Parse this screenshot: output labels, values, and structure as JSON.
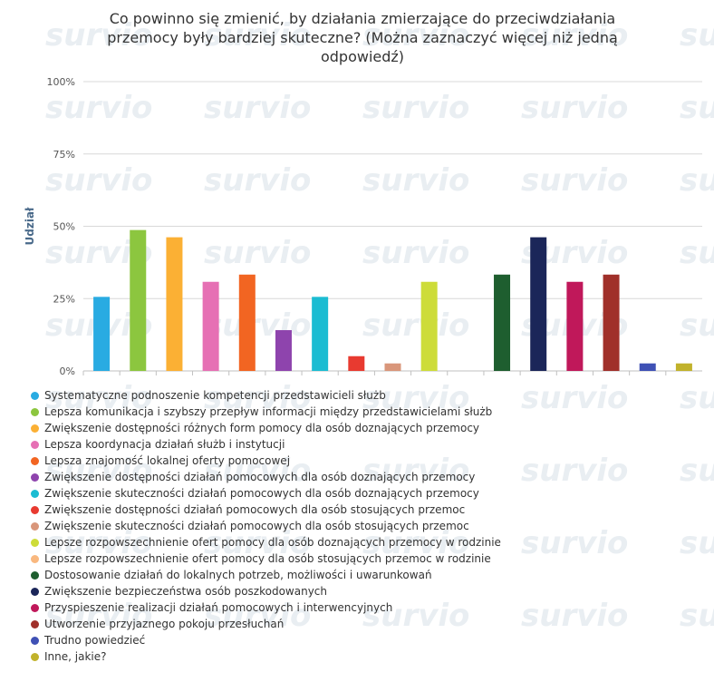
{
  "chart_data": {
    "type": "bar",
    "title": "Co powinno się zmienić, by działania zmierzające do przeciwdziałania przemocy były bardziej skuteczne? (Można zaznaczyć więcej niż jedną odpowiedź)",
    "ylabel": "Udział",
    "xlabel": "",
    "ylim": [
      0,
      100
    ],
    "yticks": [
      "0%",
      "25%",
      "50%",
      "75%",
      "100%"
    ],
    "grid": true,
    "legend_position": "bottom",
    "watermark": "survio",
    "categories": [
      "Systematyczne podnoszenie kompetencji przedstawicieli służb",
      "Lepsza komunikacja i szybszy przepływ informacji między przedstawicielami służb",
      "Zwiększenie dostępności różnych form pomocy dla osób doznających przemocy",
      "Lepsza koordynacja działań służb i instytucji",
      "Lepsza znajomość lokalnej oferty pomocowej",
      "Zwiększenie dostępności działań pomocowych dla osób doznających przemocy",
      "Zwiększenie skuteczności działań pomocowych dla osób doznających przemocy",
      "Zwiększenie dostępności działań pomocowych dla osób stosujących przemoc",
      "Zwiększenie skuteczności działań pomocowych dla osób stosujących przemoc",
      "Lepsze rozpowszechnienie ofert pomocy dla osób doznających przemocy w rodzinie",
      "Lepsze rozpowszechnienie ofert pomocy dla osób stosujących przemoc w rodzinie",
      "Dostosowanie działań do lokalnych potrzeb, możliwości i uwarunkowań",
      "Zwiększenie bezpieczeństwa osób poszkodowanych",
      "Przyspieszenie realizacji działań pomocowych i interwencyjnych",
      "Utworzenie przyjaznego pokoju przesłuchań",
      "Trudno powiedzieć",
      "Inne, jakie?"
    ],
    "values": [
      25.6,
      48.7,
      46.2,
      30.8,
      33.3,
      14.1,
      25.6,
      5.1,
      2.6,
      30.8,
      0,
      33.3,
      46.2,
      30.8,
      33.3,
      2.6,
      2.6
    ],
    "colors": [
      "#29abe2",
      "#8cc63f",
      "#fbb034",
      "#e670b4",
      "#f26522",
      "#8e44ad",
      "#1bbcd2",
      "#e83a30",
      "#d9967a",
      "#cddc39",
      "#f9b87f",
      "#1e5e2f",
      "#1b2659",
      "#c0185a",
      "#a0302a",
      "#3f51b5",
      "#c1b22b"
    ]
  }
}
